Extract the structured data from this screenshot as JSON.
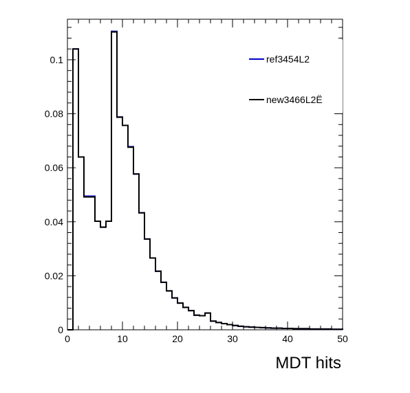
{
  "chart_data": {
    "type": "histogram",
    "xlabel": "MDT hits",
    "ylabel": "",
    "xlim": [
      0,
      50
    ],
    "ylim": [
      0,
      0.115
    ],
    "bin_width": 1,
    "x_ticks": [
      "0",
      "10",
      "20",
      "30",
      "40",
      "50"
    ],
    "y_ticks": [
      "0",
      "0.02",
      "0.04",
      "0.06",
      "0.08",
      "0.1"
    ],
    "legend_position": "top-right",
    "series": [
      {
        "name": "ref3454L2",
        "color": "#0000cc",
        "values": [
          0.0,
          0.104,
          0.064,
          0.0495,
          0.0495,
          0.0402,
          0.038,
          0.0402,
          0.1105,
          0.0788,
          0.0757,
          0.0678,
          0.0577,
          0.0433,
          0.0336,
          0.0266,
          0.0217,
          0.0176,
          0.0144,
          0.0118,
          0.0099,
          0.0083,
          0.0071,
          0.0054,
          0.0052,
          0.0062,
          0.0032,
          0.0027,
          0.0023,
          0.0019,
          0.0016,
          0.0013,
          0.0011,
          0.001,
          0.0009,
          0.0008,
          0.0007,
          0.0006,
          0.0006,
          0.0005,
          0.0005,
          0.0004,
          0.0004,
          0.0004,
          0.0003,
          0.0003,
          0.0003,
          0.0003,
          0.0002,
          0.0002
        ]
      },
      {
        "name": "new3466L2Ë",
        "color": "#000000",
        "values": [
          0.0,
          0.104,
          0.064,
          0.0492,
          0.0492,
          0.0402,
          0.038,
          0.0402,
          0.1103,
          0.0787,
          0.0757,
          0.0676,
          0.0577,
          0.0433,
          0.0336,
          0.0266,
          0.0217,
          0.0176,
          0.0144,
          0.0118,
          0.0099,
          0.0083,
          0.0071,
          0.0054,
          0.0052,
          0.0062,
          0.0032,
          0.0027,
          0.0023,
          0.0019,
          0.0016,
          0.0013,
          0.0011,
          0.001,
          0.0009,
          0.0008,
          0.0007,
          0.0006,
          0.0006,
          0.0005,
          0.0005,
          0.0004,
          0.0004,
          0.0004,
          0.0003,
          0.0003,
          0.0003,
          0.0003,
          0.0002,
          0.0002
        ]
      }
    ]
  }
}
